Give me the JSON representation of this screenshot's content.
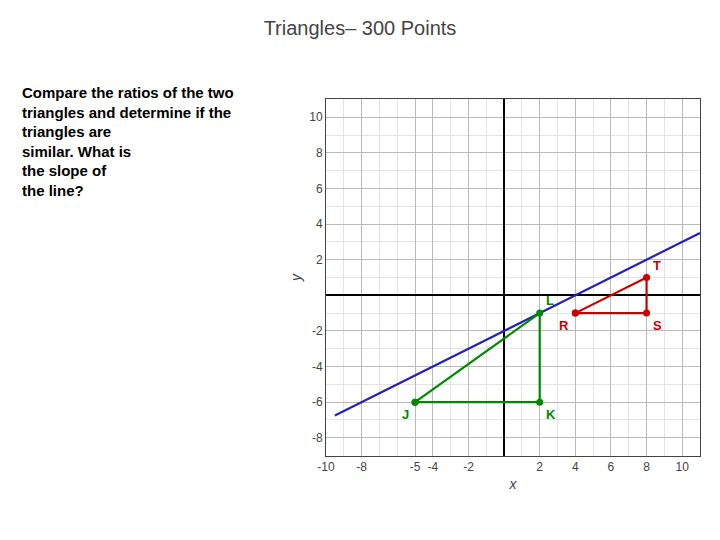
{
  "chart_data": {
    "type": "line",
    "title": "Triangles– 300 Points",
    "xlabel": "x",
    "ylabel": "y",
    "xlim": [
      -10,
      11
    ],
    "ylim": [
      -9,
      11
    ],
    "xticks": [
      -10,
      -8,
      -5,
      -4,
      -2,
      2,
      4,
      6,
      8,
      10
    ],
    "yticks": [
      -8,
      -6,
      -4,
      -2,
      2,
      4,
      6,
      8,
      10
    ],
    "grid": true,
    "series": [
      {
        "x": [
          -9.5,
          11
        ],
        "y": [
          -6.75,
          3.5
        ],
        "color": "#2222bb"
      },
      {
        "x": [
          -5,
          2,
          2,
          -5
        ],
        "y": [
          -6,
          -6,
          -1,
          -6
        ],
        "color": "#008800",
        "marker": "circle"
      },
      {
        "x": [
          4,
          8,
          8,
          4
        ],
        "y": [
          -1,
          -1,
          1,
          -1
        ],
        "color": "#cc0000",
        "marker": "circle"
      }
    ],
    "annotations": [
      {
        "text": "Compare the ratios of the two\ntriangles and determine if the\ntriangles are\nsimilar. What is\nthe slope of\nthe line?"
      },
      {
        "text": "J",
        "x": -5,
        "y": -6,
        "color": "#008800"
      },
      {
        "text": "K",
        "x": 2,
        "y": -6,
        "color": "#008800"
      },
      {
        "text": "L",
        "x": 2,
        "y": -1,
        "color": "#008800"
      },
      {
        "text": "R",
        "x": 4,
        "y": -1,
        "color": "#cc0000"
      },
      {
        "text": "S",
        "x": 8,
        "y": -1,
        "color": "#cc0000"
      },
      {
        "text": "T",
        "x": 8,
        "y": 1,
        "color": "#cc0000"
      }
    ]
  }
}
